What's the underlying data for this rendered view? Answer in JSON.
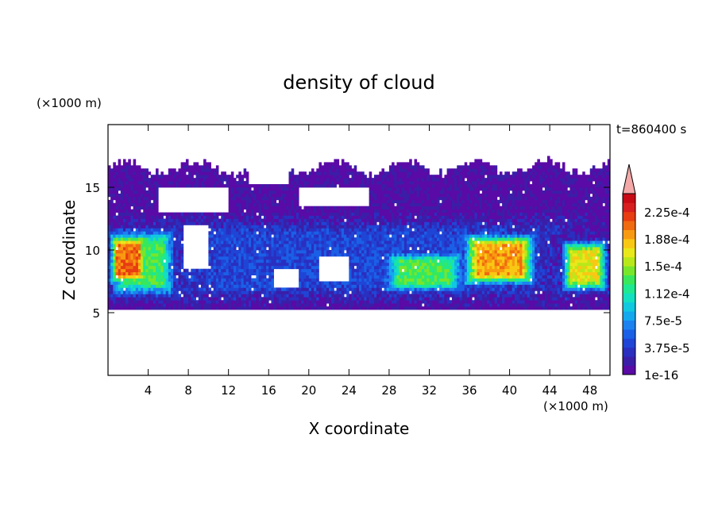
{
  "chart_data": {
    "type": "heatmap",
    "title": "density of cloud",
    "xlabel": "X coordinate",
    "ylabel": "Z coordinate",
    "x_unit": "(×1000 m)",
    "y_unit": "(×1000 m)",
    "time_label": "t=860400 s",
    "xlim": [
      0,
      50
    ],
    "ylim": [
      0,
      20
    ],
    "x_ticks": [
      4,
      8,
      12,
      16,
      20,
      24,
      28,
      32,
      36,
      40,
      44,
      48
    ],
    "y_ticks": [
      5,
      10,
      15
    ],
    "colorbar": {
      "labels": [
        "1e-16",
        "3.75e-5",
        "7.5e-5",
        "1.12e-4",
        "1.5e-4",
        "1.88e-4",
        "2.25e-4"
      ],
      "label_positions": [
        0,
        3,
        6,
        9,
        12,
        15,
        18
      ],
      "colors": [
        "#5a0aa6",
        "#3a1ea8",
        "#2a2fc0",
        "#1f45d6",
        "#1a60e6",
        "#1c82f0",
        "#14a8ee",
        "#10c8e0",
        "#12e0c0",
        "#1ee890",
        "#38e85a",
        "#78e62a",
        "#b8e81a",
        "#e8e81a",
        "#f8c814",
        "#f89a10",
        "#f06a10",
        "#e83c12",
        "#d81e1e",
        "#c80a14"
      ],
      "extend_color": "#f4a8a8"
    },
    "bands": [
      {
        "zrange": [
          5.2,
          16.8
        ],
        "level": 0,
        "x": [
          0,
          50
        ]
      },
      {
        "zrange": [
          5.5,
          13
        ],
        "level": 3,
        "x": [
          0,
          50
        ]
      },
      {
        "zrange": [
          6,
          12
        ],
        "level": 10,
        "x": [
          0,
          7
        ]
      },
      {
        "zrange": [
          7,
          11.5
        ],
        "level": 16,
        "x": [
          0,
          4
        ]
      },
      {
        "zrange": [
          6.5,
          10
        ],
        "level": 10,
        "x": [
          27,
          36
        ]
      },
      {
        "zrange": [
          7,
          11.5
        ],
        "level": 15,
        "x": [
          35,
          43
        ]
      },
      {
        "zrange": [
          6.5,
          11
        ],
        "level": 13,
        "x": [
          45,
          50
        ]
      }
    ]
  }
}
